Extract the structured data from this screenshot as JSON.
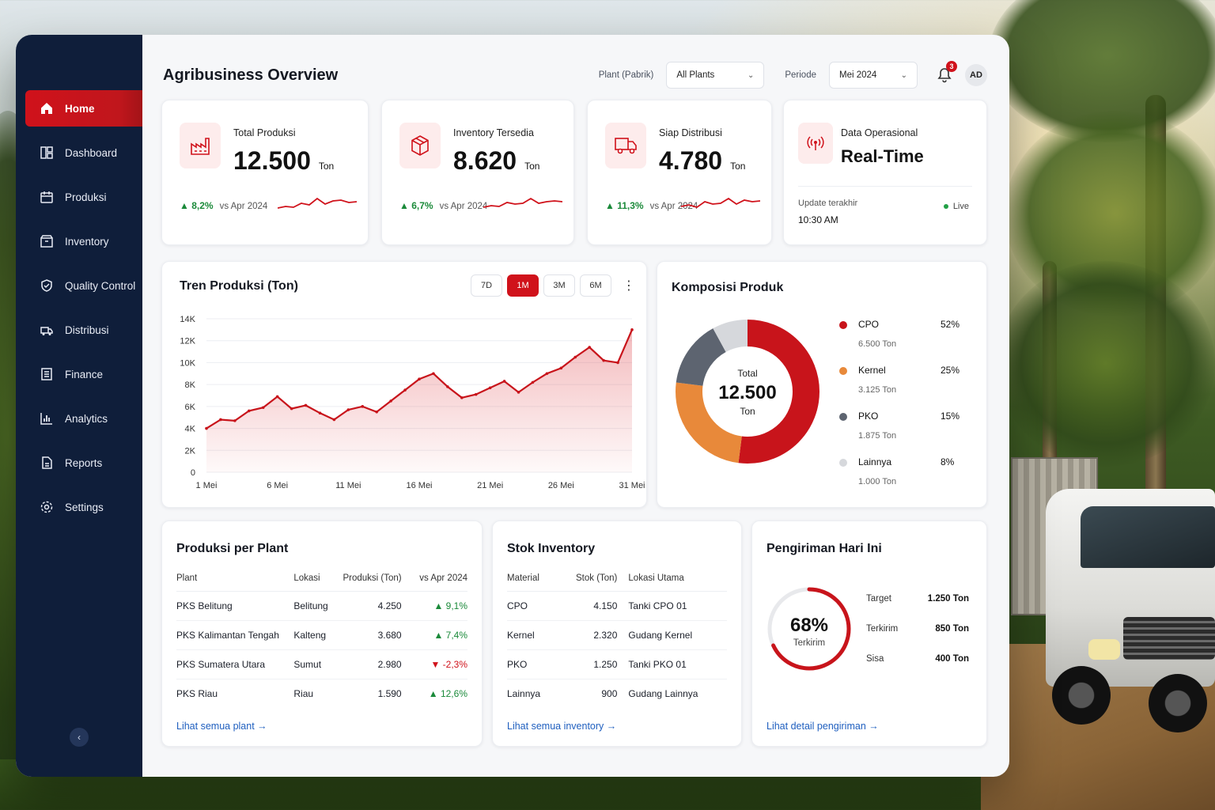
{
  "header": {
    "title": "Agribusiness Overview",
    "plant_label": "Plant (Pabrik)",
    "plant_value": "All Plants",
    "period_label": "Periode",
    "period_value": "Mei 2024",
    "notif_count": "3",
    "avatar_initials": "AD"
  },
  "sidebar": {
    "items": [
      {
        "label": "Home",
        "icon": "home-icon"
      },
      {
        "label": "Dashboard",
        "icon": "dashboard-icon"
      },
      {
        "label": "Produksi",
        "icon": "calendar-icon"
      },
      {
        "label": "Inventory",
        "icon": "box-icon"
      },
      {
        "label": "Quality Control",
        "icon": "shield-check-icon"
      },
      {
        "label": "Distribusi",
        "icon": "distribution-icon"
      },
      {
        "label": "Finance",
        "icon": "finance-icon"
      },
      {
        "label": "Analytics",
        "icon": "bar-chart-icon"
      },
      {
        "label": "Reports",
        "icon": "report-icon"
      },
      {
        "label": "Settings",
        "icon": "gear-icon"
      }
    ],
    "collapse_symbol": "‹"
  },
  "kpis": [
    {
      "title": "Total Produksi",
      "value": "12.500",
      "unit": "Ton",
      "change": "▲ 8,2%",
      "vs": "vs Apr 2024",
      "icon": "factory-icon"
    },
    {
      "title": "Inventory Tersedia",
      "value": "8.620",
      "unit": "Ton",
      "change": "▲ 6,7%",
      "vs": "vs Apr 2024",
      "icon": "cube-icon"
    },
    {
      "title": "Siap Distribusi",
      "value": "4.780",
      "unit": "Ton",
      "change": "▲ 11,3%",
      "vs": "vs Apr 2024",
      "icon": "truck-icon"
    }
  ],
  "realtime": {
    "title": "Data Operasional",
    "value": "Real-Time",
    "update_label": "Update terakhir",
    "update_time": "10:30 AM",
    "live_label": "Live"
  },
  "trend": {
    "title": "Tren Produksi (Ton)",
    "ranges": [
      "7D",
      "1M",
      "3M",
      "6M"
    ],
    "active_range": "1M",
    "menu_symbol": "⋮"
  },
  "composition": {
    "title": "Komposisi Produk",
    "center_label": "Total",
    "center_value": "12.500",
    "center_unit": "Ton",
    "items": [
      {
        "name": "CPO",
        "sub": "6.500 Ton",
        "pct": "52%",
        "color": "#c8141b"
      },
      {
        "name": "Kernel",
        "sub": "3.125 Ton",
        "pct": "25%",
        "color": "#e8893a"
      },
      {
        "name": "PKO",
        "sub": "1.875 Ton",
        "pct": "15%",
        "color": "#5d6470"
      },
      {
        "name": "Lainnya",
        "sub": "1.000 Ton",
        "pct": "8%",
        "color": "#d6d8dc"
      }
    ]
  },
  "plants": {
    "title": "Produksi per Plant",
    "headers": [
      "Plant",
      "Lokasi",
      "Produksi (Ton)",
      "vs Apr 2024"
    ],
    "rows": [
      [
        "PKS Belitung",
        "Belitung",
        "4.250",
        "▲ 9,1%"
      ],
      [
        "PKS Kalimantan Tengah",
        "Kalteng",
        "3.680",
        "▲ 7,4%"
      ],
      [
        "PKS Sumatera Utara",
        "Sumut",
        "2.980",
        "▼ -2,3%"
      ],
      [
        "PKS Riau",
        "Riau",
        "1.590",
        "▲ 12,6%"
      ]
    ],
    "link": "Lihat semua plant  →"
  },
  "stock": {
    "title": "Stok Inventory",
    "headers": [
      "Material",
      "Stok (Ton)",
      "Lokasi Utama"
    ],
    "rows": [
      [
        "CPO",
        "4.150",
        "Tanki CPO 01"
      ],
      [
        "Kernel",
        "2.320",
        "Gudang Kernel"
      ],
      [
        "PKO",
        "1.250",
        "Tanki PKO 01"
      ],
      [
        "Lainnya",
        "900",
        "Gudang Lainnya"
      ]
    ],
    "link": "Lihat semua inventory  →"
  },
  "shipping": {
    "title": "Pengiriman Hari Ini",
    "percent": "68%",
    "percent_value": 0.68,
    "percent_label": "Terkirim",
    "rows": [
      {
        "label": "Target",
        "value": "1.250 Ton"
      },
      {
        "label": "Terkirim",
        "value": "850 Ton"
      },
      {
        "label": "Sisa",
        "value": "400 Ton"
      }
    ],
    "link": "Lihat detail pengiriman  →"
  },
  "colors": {
    "accent": "#d0121b",
    "sidebar": "#0f1e3a",
    "positive": "#1b8a3a",
    "link": "#1f5fbf"
  },
  "chart_data": {
    "type": "area",
    "title": "Tren Produksi (Ton)",
    "x_tick_labels": [
      "1 Mei",
      "6 Mei",
      "11 Mei",
      "16 Mei",
      "21 Mei",
      "26 Mei",
      "31 Mei"
    ],
    "y_tick_labels": [
      "0",
      "2K",
      "4K",
      "6K",
      "8K",
      "10K",
      "12K",
      "14K"
    ],
    "ylim": [
      0,
      14000
    ],
    "x": [
      1,
      2,
      3,
      4,
      5,
      6,
      7,
      8,
      9,
      10,
      11,
      12,
      13,
      14,
      15,
      16,
      17,
      18,
      19,
      20,
      21,
      22,
      23,
      24,
      25,
      26,
      27,
      28,
      29,
      30,
      31
    ],
    "series": [
      {
        "values": [
          4000,
          4800,
          4700,
          5600,
          5900,
          6900,
          5800,
          6100,
          5400,
          4800,
          5700,
          6000,
          5500,
          6500,
          7500,
          8500,
          9000,
          7800,
          6800,
          7100,
          7700,
          8300,
          7300,
          8200,
          9000,
          9500,
          10500,
          11400,
          10200,
          10000,
          13000
        ]
      }
    ],
    "grid": true
  }
}
